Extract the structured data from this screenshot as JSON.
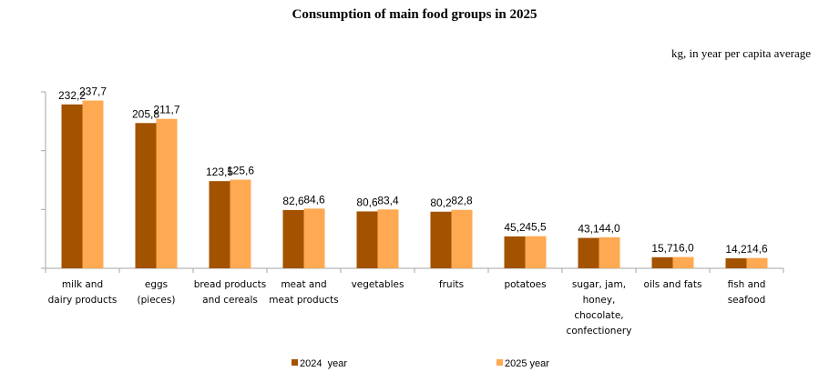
{
  "chart_data": {
    "type": "bar",
    "title": "Consumption  of main food groups in 2025",
    "subtitle": "kg, in year per capita average",
    "xlabel": "",
    "ylabel": "",
    "ylim": [
      0,
      250
    ],
    "y_ticks_labeled": false,
    "grid": false,
    "legend_position": "bottom",
    "categories": [
      [
        "milk and",
        "dairy products"
      ],
      [
        "eggs",
        "(pieces)"
      ],
      [
        "bread products",
        "and cereals"
      ],
      [
        "meat and",
        "meat products"
      ],
      [
        "vegetables"
      ],
      [
        "fruits"
      ],
      [
        "potatoes"
      ],
      [
        "sugar, jam,",
        "honey,",
        "chocolate,",
        "confectionery"
      ],
      [
        "oils and fats"
      ],
      [
        "fish and",
        "seafood"
      ]
    ],
    "series": [
      {
        "name": "2024  year",
        "color": "#A35200",
        "values": [
          232.2,
          205.8,
          123.5,
          82.6,
          80.6,
          80.2,
          45.2,
          43.1,
          15.7,
          14.2
        ],
        "labels": [
          "232,2",
          "205,8",
          "123,5",
          "82,6",
          "80,6",
          "80,2",
          "45,2",
          "43,1",
          "15,7",
          "14,2"
        ]
      },
      {
        "name": "2025 year",
        "color": "#FFA952",
        "values": [
          237.7,
          211.7,
          125.6,
          84.6,
          83.4,
          82.8,
          45.5,
          44.0,
          16.0,
          14.6
        ],
        "labels": [
          "237,7",
          "211,7",
          "125,6",
          "84,6",
          "83,4",
          "82,8",
          "45,5",
          "44,0",
          "16,0",
          "14,6"
        ]
      }
    ]
  }
}
